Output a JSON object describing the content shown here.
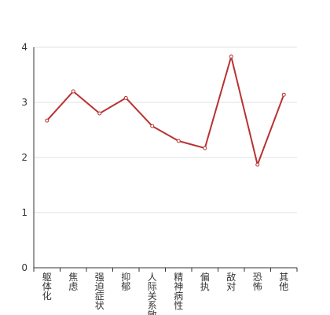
{
  "chart_data": {
    "type": "line",
    "title": "",
    "xlabel": "",
    "ylabel": "",
    "categories": [
      "躯体化",
      "焦虑",
      "强迫症状",
      "抑郁",
      "人际关系敏感",
      "精神病性",
      "偏执",
      "敌对",
      "恐怖",
      "其他"
    ],
    "series": [
      {
        "values": [
          2.67,
          3.2,
          2.8,
          3.08,
          2.57,
          2.3,
          2.17,
          3.83,
          1.87,
          3.14
        ]
      }
    ],
    "ylim": [
      0,
      4
    ],
    "yticks": [
      "0",
      "1",
      "2",
      "3",
      "4"
    ],
    "grid": true,
    "legend": "none",
    "colors": {
      "line": "#b83232",
      "grid": "#e0e0e0",
      "axis": "#333333",
      "text": "#333333"
    }
  }
}
